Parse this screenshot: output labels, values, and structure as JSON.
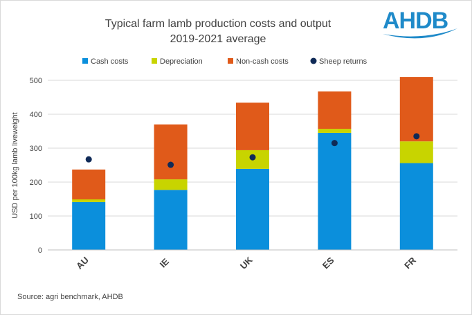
{
  "chart_data": {
    "type": "bar",
    "stacked": true,
    "title": "Typical farm lamb production costs and output",
    "subtitle": "2019-2021 average",
    "ylabel": "USD per 100kg lamb liveweight",
    "xlabel": "",
    "ylim": [
      0,
      500
    ],
    "yticks": [
      0,
      100,
      200,
      300,
      400,
      500
    ],
    "grid": true,
    "legend": "top",
    "categories": [
      "AU",
      "IE",
      "UK",
      "ES",
      "FR"
    ],
    "series": [
      {
        "name": "Cash costs",
        "kind": "bar",
        "color": "#0b8fdc",
        "values": [
          141,
          177,
          239,
          345,
          256
        ]
      },
      {
        "name": "Depreciation",
        "kind": "bar",
        "color": "#c8d400",
        "values": [
          8,
          31,
          55,
          12,
          64
        ]
      },
      {
        "name": "Non-cash costs",
        "kind": "bar",
        "color": "#e05a1a",
        "values": [
          88,
          162,
          140,
          110,
          190
        ]
      },
      {
        "name": "Sheep returns",
        "kind": "dot",
        "color": "#0f2a57",
        "values": [
          267,
          251,
          273,
          315,
          335
        ]
      }
    ],
    "source": "Source: agri benchmark, AHDB"
  },
  "logo": {
    "text": "AHDB",
    "color": "#1f8ac9"
  }
}
